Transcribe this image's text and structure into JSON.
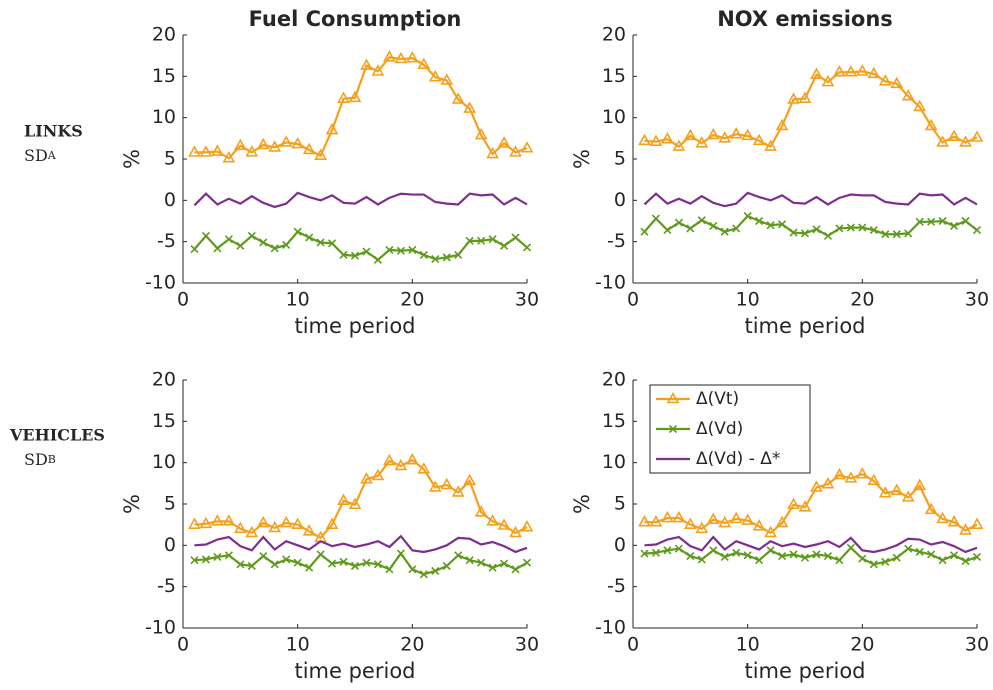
{
  "row_labels": [
    {
      "name": "LINKS",
      "sd": "SD",
      "sub": "A"
    },
    {
      "name": "VEHICLES",
      "sd": "SD",
      "sub": "B"
    }
  ],
  "chart_data": [
    {
      "type": "line",
      "title": "Fuel Consumption",
      "xlabel": "time period",
      "ylabel": "%",
      "x": [
        1,
        2,
        3,
        4,
        5,
        6,
        7,
        8,
        9,
        10,
        11,
        12,
        13,
        14,
        15,
        16,
        17,
        18,
        19,
        20,
        21,
        22,
        23,
        24,
        25,
        26,
        27,
        28,
        29,
        30
      ],
      "xlim": [
        0,
        30
      ],
      "xticks": [
        0,
        10,
        20,
        30
      ],
      "ylim": [
        -10,
        20
      ],
      "yticks": [
        -10,
        -5,
        0,
        5,
        10,
        15,
        20
      ],
      "series": [
        {
          "color": "#f5a01c",
          "marker": "triangle",
          "values": [
            5.8,
            5.8,
            5.9,
            5.1,
            6.6,
            5.8,
            6.7,
            6.4,
            7.0,
            6.8,
            6.1,
            5.4,
            8.5,
            12.3,
            12.4,
            16.3,
            15.6,
            17.3,
            17.1,
            17.2,
            16.4,
            14.9,
            14.5,
            12.2,
            11.1,
            7.9,
            5.6,
            6.9,
            5.8,
            6.3
          ]
        },
        {
          "color": "#5f9a1c",
          "marker": "x",
          "values": [
            -5.9,
            -4.3,
            -5.8,
            -4.7,
            -5.5,
            -4.3,
            -5.1,
            -5.8,
            -5.4,
            -3.8,
            -4.5,
            -5.1,
            -5.2,
            -6.6,
            -6.7,
            -6.2,
            -7.2,
            -6.0,
            -6.1,
            -6.0,
            -6.6,
            -7.1,
            -6.9,
            -6.6,
            -4.9,
            -4.9,
            -4.7,
            -5.5,
            -4.5,
            -5.7
          ]
        },
        {
          "color": "#7e2f8e",
          "marker": "none",
          "values": [
            -0.6,
            0.8,
            -0.5,
            0.2,
            -0.4,
            0.5,
            -0.3,
            -0.8,
            -0.4,
            0.9,
            0.4,
            0.0,
            0.6,
            -0.3,
            -0.4,
            0.4,
            -0.5,
            0.3,
            0.8,
            0.7,
            0.7,
            -0.2,
            -0.4,
            -0.5,
            0.8,
            0.6,
            0.7,
            -0.5,
            0.3,
            -0.5
          ]
        }
      ]
    },
    {
      "type": "line",
      "title": "NOX emissions",
      "xlabel": "time period",
      "ylabel": "%",
      "x": [
        1,
        2,
        3,
        4,
        5,
        6,
        7,
        8,
        9,
        10,
        11,
        12,
        13,
        14,
        15,
        16,
        17,
        18,
        19,
        20,
        21,
        22,
        23,
        24,
        25,
        26,
        27,
        28,
        29,
        30
      ],
      "xlim": [
        0,
        30
      ],
      "xticks": [
        0,
        10,
        20,
        30
      ],
      "ylim": [
        -10,
        20
      ],
      "yticks": [
        -10,
        -5,
        0,
        5,
        10,
        15,
        20
      ],
      "series": [
        {
          "color": "#f5a01c",
          "marker": "triangle",
          "values": [
            7.2,
            7.1,
            7.4,
            6.5,
            7.8,
            6.9,
            7.9,
            7.5,
            8.0,
            7.8,
            7.2,
            6.5,
            9.0,
            12.2,
            12.3,
            15.2,
            14.3,
            15.5,
            15.5,
            15.6,
            15.3,
            14.4,
            14.1,
            12.6,
            11.3,
            9.0,
            7.0,
            7.7,
            7.0,
            7.6
          ]
        },
        {
          "color": "#5f9a1c",
          "marker": "x",
          "values": [
            -3.8,
            -2.2,
            -3.6,
            -2.7,
            -3.4,
            -2.4,
            -3.1,
            -3.8,
            -3.4,
            -1.9,
            -2.5,
            -3.0,
            -2.9,
            -3.9,
            -4.0,
            -3.5,
            -4.3,
            -3.4,
            -3.3,
            -3.3,
            -3.6,
            -4.1,
            -4.1,
            -4.0,
            -2.6,
            -2.6,
            -2.5,
            -3.1,
            -2.5,
            -3.6
          ]
        },
        {
          "color": "#7e2f8e",
          "marker": "none",
          "values": [
            -0.5,
            0.8,
            -0.4,
            0.2,
            -0.4,
            0.5,
            -0.3,
            -0.7,
            -0.4,
            0.9,
            0.4,
            0.0,
            0.6,
            -0.3,
            -0.4,
            0.4,
            -0.5,
            0.3,
            0.7,
            0.6,
            0.6,
            -0.2,
            -0.4,
            -0.5,
            0.8,
            0.6,
            0.7,
            -0.5,
            0.3,
            -0.5
          ]
        }
      ]
    },
    {
      "type": "line",
      "xlabel": "time period",
      "ylabel": "%",
      "x": [
        1,
        2,
        3,
        4,
        5,
        6,
        7,
        8,
        9,
        10,
        11,
        12,
        13,
        14,
        15,
        16,
        17,
        18,
        19,
        20,
        21,
        22,
        23,
        24,
        25,
        26,
        27,
        28,
        29,
        30
      ],
      "xlim": [
        0,
        30
      ],
      "xticks": [
        0,
        10,
        20,
        30
      ],
      "ylim": [
        -10,
        20
      ],
      "yticks": [
        -10,
        -5,
        0,
        5,
        10,
        15,
        20
      ],
      "series": [
        {
          "color": "#f5a01c",
          "marker": "triangle",
          "values": [
            2.5,
            2.6,
            2.9,
            2.9,
            2.0,
            1.5,
            2.7,
            2.1,
            2.7,
            2.5,
            1.7,
            0.9,
            2.5,
            5.4,
            4.9,
            8.0,
            8.4,
            10.2,
            9.6,
            10.3,
            9.2,
            7.0,
            7.3,
            6.4,
            7.8,
            4.0,
            2.9,
            2.4,
            1.5,
            2.2
          ]
        },
        {
          "color": "#5f9a1c",
          "marker": "x",
          "values": [
            -1.8,
            -1.7,
            -1.4,
            -1.2,
            -2.3,
            -2.5,
            -1.3,
            -2.3,
            -1.7,
            -2.1,
            -2.7,
            -1.1,
            -2.2,
            -2.0,
            -2.5,
            -2.1,
            -2.3,
            -2.9,
            -1.0,
            -2.9,
            -3.5,
            -3.1,
            -2.5,
            -1.2,
            -1.8,
            -2.1,
            -2.7,
            -2.2,
            -2.9,
            -2.1
          ]
        },
        {
          "color": "#7e2f8e",
          "marker": "none",
          "values": [
            0.0,
            0.1,
            0.7,
            1.0,
            -0.1,
            -0.6,
            1.0,
            -0.5,
            0.5,
            0.0,
            -0.5,
            0.5,
            -0.1,
            0.2,
            -0.2,
            0.1,
            0.5,
            -0.2,
            1.1,
            -0.6,
            -0.8,
            -0.5,
            0.0,
            0.9,
            0.8,
            0.1,
            0.4,
            -0.1,
            -0.8,
            -0.3
          ]
        }
      ]
    },
    {
      "type": "line",
      "xlabel": "time period",
      "ylabel": "%",
      "legend": "upper left",
      "x": [
        1,
        2,
        3,
        4,
        5,
        6,
        7,
        8,
        9,
        10,
        11,
        12,
        13,
        14,
        15,
        16,
        17,
        18,
        19,
        20,
        21,
        22,
        23,
        24,
        25,
        26,
        27,
        28,
        29,
        30
      ],
      "xlim": [
        0,
        30
      ],
      "xticks": [
        0,
        10,
        20,
        30
      ],
      "ylim": [
        -10,
        20
      ],
      "yticks": [
        -10,
        -5,
        0,
        5,
        10,
        15,
        20
      ],
      "series": [
        {
          "name": "Δ(Vt)",
          "color": "#f5a01c",
          "marker": "triangle",
          "values": [
            2.8,
            2.8,
            3.3,
            3.3,
            2.5,
            2.0,
            3.1,
            2.7,
            3.2,
            3.0,
            2.3,
            1.5,
            2.7,
            4.9,
            4.6,
            7.0,
            7.4,
            8.5,
            8.1,
            8.6,
            7.8,
            6.3,
            6.6,
            5.8,
            7.2,
            4.3,
            3.2,
            2.8,
            1.8,
            2.5
          ]
        },
        {
          "name": "Δ(Vd)",
          "color": "#5f9a1c",
          "marker": "x",
          "values": [
            -1.0,
            -0.9,
            -0.6,
            -0.4,
            -1.3,
            -1.7,
            -0.6,
            -1.4,
            -0.9,
            -1.2,
            -1.8,
            -0.6,
            -1.3,
            -1.1,
            -1.5,
            -1.1,
            -1.3,
            -1.8,
            -0.3,
            -1.6,
            -2.3,
            -2.0,
            -1.5,
            -0.4,
            -0.8,
            -1.1,
            -1.8,
            -1.2,
            -1.9,
            -1.4
          ]
        },
        {
          "name": "Δ(Vd) - Δ*",
          "color": "#7e2f8e",
          "marker": "none",
          "values": [
            0.0,
            0.1,
            0.7,
            1.0,
            -0.1,
            -0.6,
            1.0,
            -0.5,
            0.5,
            0.0,
            -0.5,
            0.5,
            -0.1,
            0.2,
            -0.2,
            0.1,
            0.5,
            -0.2,
            0.9,
            -0.6,
            -0.8,
            -0.5,
            0.0,
            0.8,
            0.7,
            0.1,
            0.4,
            -0.1,
            -0.8,
            -0.3
          ]
        }
      ]
    }
  ]
}
